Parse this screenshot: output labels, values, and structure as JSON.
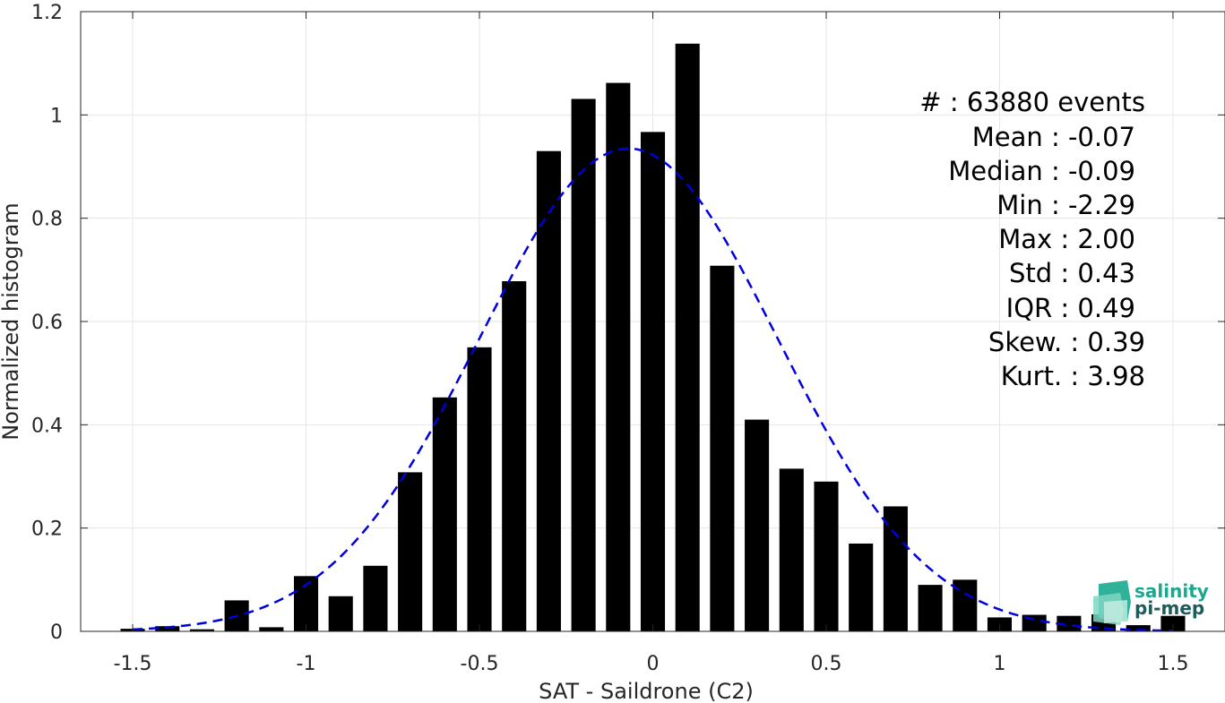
{
  "chart_data": {
    "type": "bar",
    "title": "",
    "xlabel": "SAT - Saildrone (C2)",
    "ylabel": "Normalized histogram",
    "xlim": [
      -1.65,
      1.65
    ],
    "ylim": [
      0,
      1.2
    ],
    "grid": true,
    "xticks": [
      -1.5,
      -1,
      -0.5,
      0,
      0.5,
      1,
      1.5
    ],
    "xtick_labels": [
      "-1.5",
      "-1",
      "-0.5",
      "0",
      "0.5",
      "1",
      "1.5"
    ],
    "yticks": [
      0,
      0.2,
      0.4,
      0.6,
      0.8,
      1,
      1.2
    ],
    "ytick_labels": [
      "0",
      "0.2",
      "0.4",
      "0.6",
      "0.8",
      "1",
      "1.2"
    ],
    "bar_color": "#000000",
    "bar_width": 0.07,
    "x": [
      -1.5,
      -1.4,
      -1.3,
      -1.2,
      -1.1,
      -1.0,
      -0.9,
      -0.8,
      -0.7,
      -0.6,
      -0.5,
      -0.4,
      -0.3,
      -0.2,
      -0.1,
      0.0,
      0.1,
      0.2,
      0.3,
      0.4,
      0.5,
      0.6,
      0.7,
      0.8,
      0.9,
      1.0,
      1.1,
      1.2,
      1.3,
      1.4,
      1.5
    ],
    "values": [
      0.005,
      0.01,
      0.004,
      0.06,
      0.008,
      0.107,
      0.068,
      0.127,
      0.308,
      0.453,
      0.55,
      0.678,
      0.93,
      1.031,
      1.062,
      0.967,
      1.138,
      0.708,
      0.41,
      0.315,
      0.29,
      0.17,
      0.242,
      0.09,
      0.1,
      0.027,
      0.032,
      0.03,
      0.033,
      0.012,
      0.03
    ],
    "fit_curve": {
      "style": "dashed",
      "color": "#0000dd",
      "mean": -0.07,
      "std": 0.43,
      "peak": 0.935,
      "x_range": [
        -1.5,
        1.5
      ]
    }
  },
  "stats": [
    {
      "label": "#  ",
      "sep": " : ",
      "value": "63880 events"
    },
    {
      "label": "Mean",
      "sep": " : ",
      "value": "-0.07"
    },
    {
      "label": "Median",
      "sep": " : ",
      "value": "-0.09"
    },
    {
      "label": "Min",
      "sep": " : ",
      "value": "-2.29"
    },
    {
      "label": "Max",
      "sep": " : ",
      "value": "2.00"
    },
    {
      "label": "Std",
      "sep": " : ",
      "value": "0.43"
    },
    {
      "label": "IQR",
      "sep": " : ",
      "value": "0.49"
    },
    {
      "label": "Skew.",
      "sep": " : ",
      "value": "0.39"
    },
    {
      "label": "Kurt.",
      "sep": " : ",
      "value": "3.98"
    }
  ],
  "logo": {
    "line1": "salinity",
    "line2": "pi-mep",
    "color1": "#1aa88e",
    "color2": "#1d5c5a"
  }
}
